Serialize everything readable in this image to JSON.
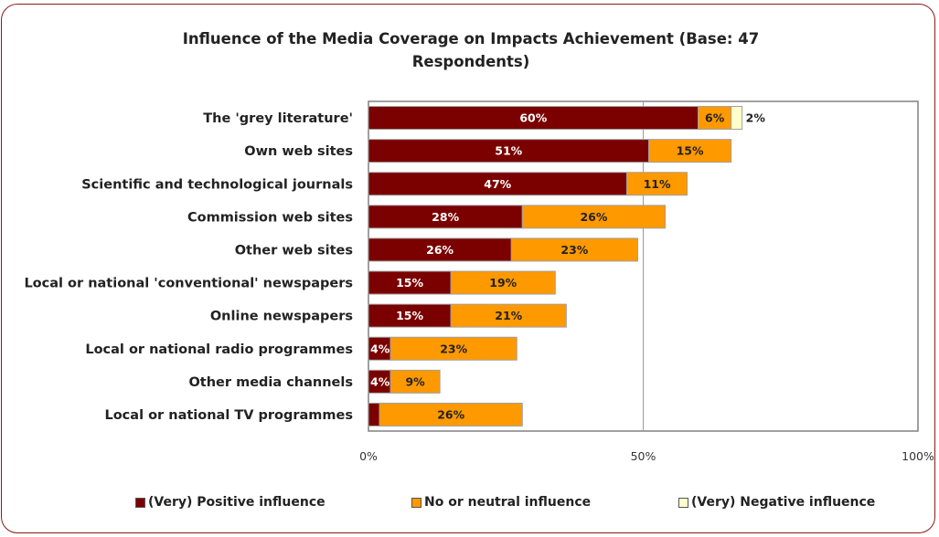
{
  "chart_data": {
    "type": "bar",
    "orientation": "horizontal",
    "stacked": true,
    "title": "Influence of the Media Coverage on Impacts Achievement (Base: 47 Respondents)",
    "categories": [
      "The 'grey literature'",
      "Own web sites",
      "Scientific and technological journals",
      "Commission web sites",
      "Other web sites",
      "Local or national 'conventional' newspapers",
      "Online newspapers",
      "Local or national radio programmes",
      "Other media channels",
      "Local or national TV programmes"
    ],
    "series": [
      {
        "name": "(Very) Positive influence",
        "color": "#7b0000",
        "label_color": "#ffffff",
        "values": [
          60,
          51,
          47,
          28,
          26,
          15,
          15,
          4,
          4,
          2
        ],
        "labels": [
          "60%",
          "51%",
          "47%",
          "28%",
          "26%",
          "15%",
          "15%",
          "4%",
          "4%",
          "2%"
        ]
      },
      {
        "name": "No or neutral influence",
        "color": "#ff9900",
        "label_color": "#222222",
        "values": [
          6,
          15,
          11,
          26,
          23,
          19,
          21,
          23,
          9,
          26
        ],
        "labels": [
          "6%",
          "15%",
          "11%",
          "26%",
          "23%",
          "19%",
          "21%",
          "23%",
          "9%",
          "26%"
        ]
      },
      {
        "name": "(Very) Negative influence",
        "color": "#ffffcc",
        "label_color": "#222222",
        "values": [
          2,
          0,
          0,
          0,
          0,
          0,
          0,
          0,
          0,
          0
        ],
        "labels": [
          "2%",
          "",
          "",
          "",
          "",
          "",
          "",
          "",
          "",
          ""
        ]
      }
    ],
    "xlim": [
      0,
      100
    ],
    "xticks": [
      "0%",
      "50%",
      "100%"
    ],
    "grid": true,
    "legend_position": "bottom"
  }
}
